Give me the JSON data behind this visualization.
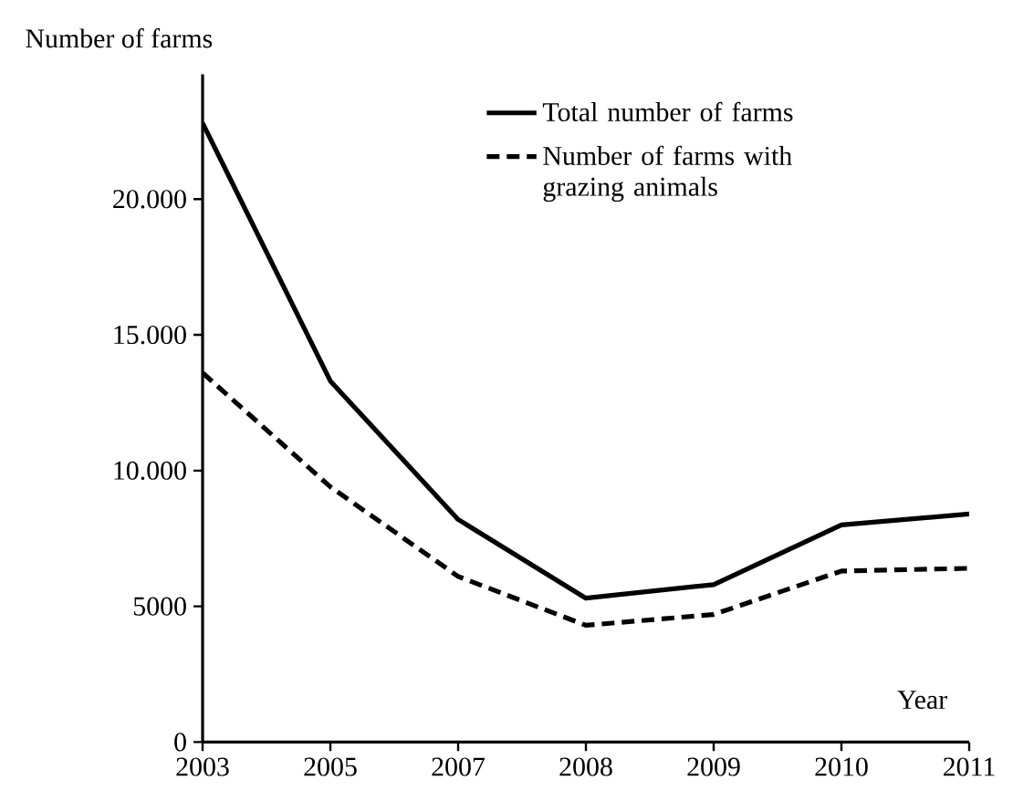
{
  "chart_data": {
    "type": "line",
    "ylabel": "Number of farms",
    "xlabel": "Year",
    "categories": [
      "2003",
      "2005",
      "2007",
      "2008",
      "2009",
      "2010",
      "2011"
    ],
    "series": [
      {
        "name": "Total number of farms",
        "color": "#000000",
        "line_style": "solid",
        "values": [
          22800,
          13300,
          8200,
          5300,
          5800,
          8000,
          8400
        ]
      },
      {
        "name": "Number of farms with grazing animals",
        "color": "#000000",
        "line_style": "dashed",
        "values": [
          13600,
          9400,
          6100,
          4300,
          4700,
          6300,
          6400
        ]
      }
    ],
    "ylim": [
      0,
      24600
    ],
    "yticks": [
      0,
      5000,
      {
        "value": 10000,
        "label": "10.000"
      },
      {
        "value": 15000,
        "label": "15.000"
      },
      {
        "value": 20000,
        "label": "20.000"
      }
    ],
    "legend": "top right",
    "grid": false,
    "marker": "none"
  }
}
